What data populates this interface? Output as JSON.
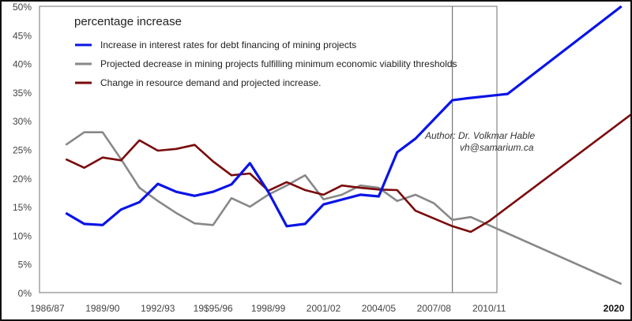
{
  "chart_data": {
    "type": "line",
    "title": "percentage increase",
    "xlabel": "",
    "ylabel": "",
    "ylim": [
      0,
      50
    ],
    "y_ticks": [
      "0%",
      "5%",
      "10%",
      "15%",
      "20%",
      "25%",
      "30%",
      "35%",
      "40%",
      "45%",
      "50%"
    ],
    "x_ticks": [
      {
        "label": "1986/87",
        "x": 1986
      },
      {
        "label": "1989/90",
        "x": 1989
      },
      {
        "label": "1992/93",
        "x": 1992
      },
      {
        "label": "19$95/96",
        "x": 1995
      },
      {
        "label": "1998/99",
        "x": 1998
      },
      {
        "label": "2001/02",
        "x": 2001
      },
      {
        "label": "2004/05",
        "x": 2004
      },
      {
        "label": "2007/08",
        "x": 2007
      },
      {
        "label": "2010/11",
        "x": 2010
      },
      {
        "label": "2020",
        "x": 2020
      }
    ],
    "grid": false,
    "legend_position": "top-left",
    "marker_line_year": 2008,
    "annotation": {
      "author": "Author: Dr. Volkmar Hable",
      "email": "vh@samarium.ca"
    },
    "series": [
      {
        "name": "Increase in interest rates  for debt financing of mining projects",
        "color": "#0a14e6",
        "x": [
          1987,
          1988,
          1989,
          1990,
          1991,
          1992,
          1993,
          1994,
          1995,
          1996,
          1997,
          1998,
          1999,
          2000,
          2001,
          2003,
          2004,
          2005,
          2006,
          2008,
          2008.7,
          2011,
          2020
        ],
        "y": [
          13.9,
          12.0,
          11.8,
          14.5,
          15.8,
          19.0,
          17.6,
          16.9,
          17.6,
          18.9,
          22.6,
          17.6,
          11.6,
          12.0,
          15.4,
          17.1,
          16.8,
          24.5,
          26.9,
          33.6,
          33.9,
          34.7,
          50.0
        ]
      },
      {
        "name": "Projected decrease in mining projects fulfilling minimum economic viability thresholds",
        "color": "#888888",
        "x": [
          1987,
          1988,
          1989,
          1990,
          1991,
          1992,
          1993,
          1994,
          1995,
          1996,
          1997,
          1998,
          1999,
          2000,
          2001,
          2002,
          2003,
          2004,
          2005,
          2006,
          2007,
          2008,
          2009,
          2020
        ],
        "y": [
          25.8,
          28.0,
          28.0,
          23.3,
          18.3,
          16.0,
          13.9,
          12.1,
          11.8,
          16.5,
          15.0,
          17.1,
          18.7,
          20.5,
          16.3,
          17.1,
          18.7,
          18.3,
          16.0,
          17.1,
          15.6,
          12.7,
          13.2,
          1.5
        ]
      },
      {
        "name": "Change in resource demand and projected increase.",
        "color": "#7a0a0a",
        "x": [
          1987,
          1988,
          1989,
          1990,
          1991,
          1992,
          1993,
          1994,
          1995,
          1996,
          1997,
          1998,
          1999,
          2000,
          2001,
          2002,
          2003,
          2004,
          2005,
          2006,
          2008,
          2009,
          2010,
          2021
        ],
        "y": [
          23.3,
          21.8,
          23.6,
          23.1,
          26.6,
          24.8,
          25.1,
          25.8,
          22.9,
          20.5,
          20.8,
          17.8,
          19.3,
          17.9,
          17.1,
          18.7,
          18.3,
          18.0,
          17.9,
          14.3,
          11.6,
          10.6,
          12.5,
          31.5
        ]
      }
    ]
  }
}
